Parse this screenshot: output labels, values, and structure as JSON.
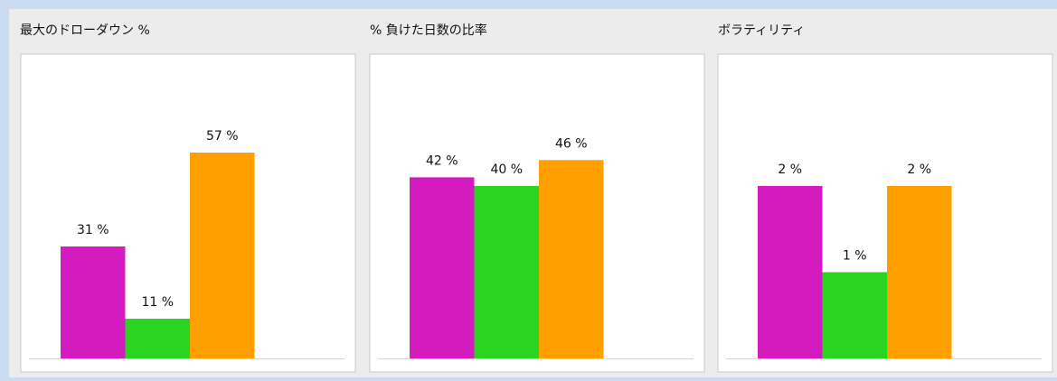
{
  "chart_data": [
    {
      "type": "bar",
      "title": "最大のドローダウン %",
      "categories": [
        null,
        null,
        null
      ],
      "values": [
        31,
        11,
        57
      ],
      "value_labels": [
        "31 %",
        "11 %",
        "57 %"
      ],
      "colors": [
        "#d31bc0",
        "#2bd41f",
        "#ff9f00"
      ],
      "ylim": [
        0,
        80
      ]
    },
    {
      "type": "bar",
      "title": "% 負けた日数の比率",
      "categories": [
        null,
        null,
        null
      ],
      "values": [
        42,
        40,
        46
      ],
      "value_labels": [
        "42 %",
        "40 %",
        "46 %"
      ],
      "colors": [
        "#d31bc0",
        "#2bd41f",
        "#ff9f00"
      ],
      "ylim": [
        0,
        67
      ]
    },
    {
      "type": "bar",
      "title": "ボラティリティ",
      "categories": [
        null,
        null,
        null
      ],
      "values": [
        2,
        1,
        2
      ],
      "value_labels": [
        "2 %",
        "1 %",
        "2 %"
      ],
      "colors": [
        "#d31bc0",
        "#2bd41f",
        "#ff9f00"
      ],
      "ylim": [
        0,
        3.35
      ]
    }
  ]
}
